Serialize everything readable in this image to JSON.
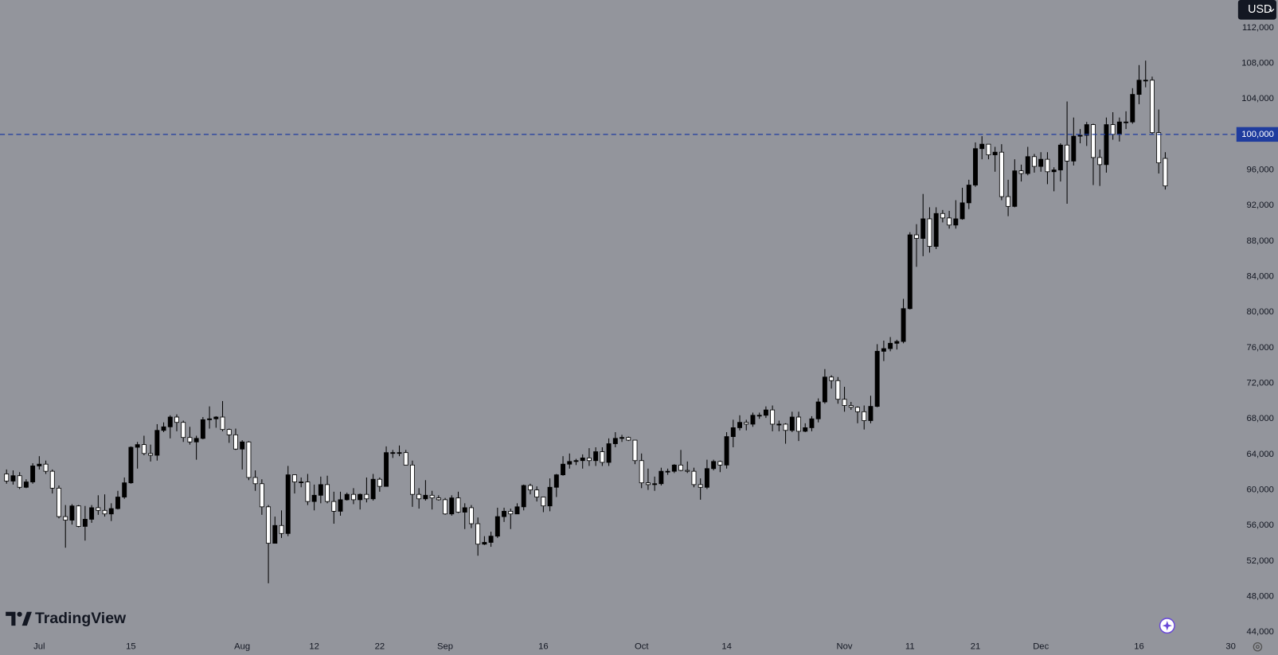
{
  "chart_data": {
    "type": "candlestick",
    "x": [
      "06-26",
      "06-27",
      "06-28",
      "06-29",
      "06-30",
      "07-01",
      "07-02",
      "07-03",
      "07-04",
      "07-05",
      "07-06",
      "07-07",
      "07-08",
      "07-09",
      "07-10",
      "07-11",
      "07-12",
      "07-13",
      "07-14",
      "07-15",
      "07-16",
      "07-17",
      "07-18",
      "07-19",
      "07-20",
      "07-21",
      "07-22",
      "07-23",
      "07-24",
      "07-25",
      "07-26",
      "07-27",
      "07-28",
      "07-29",
      "07-30",
      "07-31",
      "08-01",
      "08-02",
      "08-03",
      "08-04",
      "08-05",
      "08-06",
      "08-07",
      "08-08",
      "08-09",
      "08-10",
      "08-11",
      "08-12",
      "08-13",
      "08-14",
      "08-15",
      "08-16",
      "08-17",
      "08-18",
      "08-19",
      "08-20",
      "08-21",
      "08-22",
      "08-23",
      "08-24",
      "08-25",
      "08-26",
      "08-27",
      "08-28",
      "08-29",
      "08-30",
      "08-31",
      "09-01",
      "09-02",
      "09-03",
      "09-04",
      "09-05",
      "09-06",
      "09-07",
      "09-08",
      "09-09",
      "09-10",
      "09-11",
      "09-12",
      "09-13",
      "09-14",
      "09-15",
      "09-16",
      "09-17",
      "09-18",
      "09-19",
      "09-20",
      "09-21",
      "09-22",
      "09-23",
      "09-24",
      "09-25",
      "09-26",
      "09-27",
      "09-28",
      "09-29",
      "09-30",
      "10-01",
      "10-02",
      "10-03",
      "10-04",
      "10-05",
      "10-06",
      "10-07",
      "10-08",
      "10-09",
      "10-10",
      "10-11",
      "10-12",
      "10-13",
      "10-14",
      "10-15",
      "10-16",
      "10-17",
      "10-18",
      "10-19",
      "10-20",
      "10-21",
      "10-22",
      "10-23",
      "10-24",
      "10-25",
      "10-26",
      "10-27",
      "10-28",
      "10-29",
      "10-30",
      "10-31",
      "11-01",
      "11-02",
      "11-03",
      "11-04",
      "11-05",
      "11-06",
      "11-07",
      "11-08",
      "11-09",
      "11-10",
      "11-11",
      "11-12",
      "11-13",
      "11-14",
      "11-15",
      "11-16",
      "11-17",
      "11-18",
      "11-19",
      "11-20",
      "11-21",
      "11-22",
      "11-23",
      "11-24",
      "11-25",
      "11-26",
      "11-27",
      "11-28",
      "11-29",
      "11-30",
      "12-01",
      "12-02",
      "12-03",
      "12-04",
      "12-05",
      "12-06",
      "12-07",
      "12-08",
      "12-09",
      "12-10",
      "12-11",
      "12-12",
      "12-13",
      "12-14",
      "12-15",
      "12-16",
      "12-17",
      "12-18",
      "12-19",
      "12-20"
    ],
    "ohlc": [
      [
        61800,
        62300,
        60700,
        61000
      ],
      [
        61000,
        62200,
        60600,
        61600
      ],
      [
        61600,
        62000,
        60100,
        60300
      ],
      [
        60300,
        61200,
        60200,
        60900
      ],
      [
        60900,
        63000,
        60700,
        62700
      ],
      [
        62700,
        63800,
        62300,
        62900
      ],
      [
        62900,
        63300,
        61800,
        62100
      ],
      [
        62100,
        62300,
        59600,
        60200
      ],
      [
        60200,
        60500,
        56800,
        57000
      ],
      [
        57000,
        58300,
        53500,
        56600
      ],
      [
        56600,
        58400,
        56100,
        58200
      ],
      [
        58200,
        58300,
        55800,
        55900
      ],
      [
        55900,
        58200,
        54300,
        56700
      ],
      [
        56700,
        58300,
        56300,
        58000
      ],
      [
        58000,
        59400,
        57200,
        57700
      ],
      [
        57700,
        59500,
        57000,
        57300
      ],
      [
        57300,
        58500,
        56500,
        57900
      ],
      [
        57900,
        59900,
        57800,
        59200
      ],
      [
        59200,
        61400,
        59000,
        60800
      ],
      [
        60800,
        64900,
        60700,
        64800
      ],
      [
        64800,
        65400,
        62400,
        65100
      ],
      [
        65100,
        66100,
        63900,
        64100
      ],
      [
        64100,
        65100,
        63200,
        63900
      ],
      [
        63900,
        67400,
        63300,
        66700
      ],
      [
        66700,
        67600,
        66500,
        67100
      ],
      [
        67100,
        68400,
        65800,
        68200
      ],
      [
        68200,
        68500,
        66600,
        67600
      ],
      [
        67600,
        67800,
        65400,
        65900
      ],
      [
        65900,
        67100,
        65100,
        65400
      ],
      [
        65400,
        66100,
        63400,
        65800
      ],
      [
        65800,
        68200,
        65700,
        67900
      ],
      [
        67900,
        69400,
        66900,
        68000
      ],
      [
        68000,
        68300,
        67000,
        68200
      ],
      [
        68200,
        70000,
        66600,
        66800
      ],
      [
        66800,
        66900,
        65300,
        66200
      ],
      [
        66200,
        66900,
        64500,
        64600
      ],
      [
        64600,
        65600,
        62300,
        65400
      ],
      [
        65400,
        65500,
        61100,
        61400
      ],
      [
        61400,
        62200,
        59900,
        60700
      ],
      [
        60700,
        61200,
        57200,
        58100
      ],
      [
        58100,
        58300,
        49500,
        54000
      ],
      [
        54000,
        57000,
        54000,
        56000
      ],
      [
        56000,
        57700,
        54600,
        55100
      ],
      [
        55100,
        62700,
        54800,
        61700
      ],
      [
        61700,
        61700,
        59600,
        60900
      ],
      [
        60900,
        61400,
        60300,
        60900
      ],
      [
        60900,
        61800,
        58300,
        58700
      ],
      [
        58700,
        60600,
        57700,
        59400
      ],
      [
        59400,
        61500,
        58500,
        60600
      ],
      [
        60600,
        61600,
        58500,
        58700
      ],
      [
        58700,
        59800,
        56200,
        57600
      ],
      [
        57600,
        59800,
        57100,
        58900
      ],
      [
        58900,
        59700,
        58800,
        59500
      ],
      [
        59500,
        60200,
        58400,
        58900
      ],
      [
        58900,
        59600,
        57800,
        59500
      ],
      [
        59500,
        61400,
        58600,
        59000
      ],
      [
        59000,
        61800,
        58800,
        61200
      ],
      [
        61200,
        61400,
        59800,
        60400
      ],
      [
        60400,
        64900,
        60400,
        64200
      ],
      [
        64200,
        64500,
        63600,
        64200
      ],
      [
        64200,
        65000,
        63800,
        64200
      ],
      [
        64200,
        64500,
        62800,
        62800
      ],
      [
        62800,
        63300,
        58100,
        59500
      ],
      [
        59500,
        60200,
        57900,
        59000
      ],
      [
        59000,
        61100,
        58800,
        59400
      ],
      [
        59400,
        59900,
        57800,
        59100
      ],
      [
        59100,
        59400,
        58800,
        58900
      ],
      [
        58900,
        59100,
        57200,
        57300
      ],
      [
        57300,
        59400,
        57100,
        59100
      ],
      [
        59100,
        59800,
        57400,
        57500
      ],
      [
        57500,
        58500,
        55600,
        58000
      ],
      [
        58000,
        58300,
        55700,
        56200
      ],
      [
        56200,
        56900,
        52600,
        53900
      ],
      [
        53900,
        54800,
        53800,
        54100
      ],
      [
        54100,
        55300,
        53600,
        54800
      ],
      [
        54800,
        58000,
        54600,
        57000
      ],
      [
        57000,
        58000,
        56400,
        57600
      ],
      [
        57600,
        57900,
        55600,
        57300
      ],
      [
        57300,
        58500,
        57300,
        58100
      ],
      [
        58100,
        60600,
        57700,
        60500
      ],
      [
        60500,
        60700,
        59500,
        60000
      ],
      [
        60000,
        60400,
        58700,
        59200
      ],
      [
        59200,
        59200,
        57500,
        58200
      ],
      [
        58200,
        61300,
        57600,
        60300
      ],
      [
        60300,
        61800,
        59200,
        61700
      ],
      [
        61700,
        63800,
        61600,
        62900
      ],
      [
        62900,
        64100,
        62400,
        63200
      ],
      [
        63200,
        63500,
        62800,
        63300
      ],
      [
        63300,
        64000,
        62400,
        63600
      ],
      [
        63600,
        64700,
        62700,
        63300
      ],
      [
        63300,
        64800,
        62700,
        64300
      ],
      [
        64300,
        64800,
        62700,
        63100
      ],
      [
        63100,
        65800,
        62700,
        65200
      ],
      [
        65200,
        66500,
        64800,
        65800
      ],
      [
        65800,
        66200,
        65400,
        65900
      ],
      [
        65900,
        66000,
        65500,
        65600
      ],
      [
        65600,
        65600,
        62900,
        63300
      ],
      [
        63300,
        64100,
        60200,
        60800
      ],
      [
        60800,
        62400,
        60000,
        60600
      ],
      [
        60600,
        61500,
        59900,
        60700
      ],
      [
        60700,
        62500,
        60500,
        62100
      ],
      [
        62100,
        62400,
        61700,
        62100
      ],
      [
        62100,
        62900,
        61900,
        62800
      ],
      [
        62800,
        64500,
        62100,
        62200
      ],
      [
        62200,
        63200,
        61900,
        62100
      ],
      [
        62100,
        62500,
        60300,
        60600
      ],
      [
        60600,
        61300,
        58900,
        60300
      ],
      [
        60300,
        63400,
        60100,
        62400
      ],
      [
        62400,
        63400,
        62200,
        63200
      ],
      [
        63200,
        63300,
        62000,
        62800
      ],
      [
        62800,
        66500,
        62400,
        66000
      ],
      [
        66000,
        67900,
        64800,
        67000
      ],
      [
        67000,
        68400,
        66700,
        67600
      ],
      [
        67600,
        67900,
        66700,
        67400
      ],
      [
        67400,
        68700,
        67100,
        68400
      ],
      [
        68400,
        68700,
        68000,
        68400
      ],
      [
        68400,
        69400,
        68100,
        69000
      ],
      [
        69000,
        69500,
        66600,
        67400
      ],
      [
        67400,
        67800,
        66600,
        67400
      ],
      [
        67400,
        67500,
        65200,
        66700
      ],
      [
        66700,
        68800,
        66500,
        68200
      ],
      [
        68200,
        68800,
        65500,
        66600
      ],
      [
        66600,
        67500,
        66500,
        67000
      ],
      [
        67000,
        68300,
        66600,
        68000
      ],
      [
        68000,
        70300,
        67600,
        69900
      ],
      [
        69900,
        73600,
        69700,
        72700
      ],
      [
        72700,
        72900,
        71400,
        72300
      ],
      [
        72300,
        72700,
        69700,
        70200
      ],
      [
        70200,
        71600,
        68800,
        69500
      ],
      [
        69500,
        69900,
        69000,
        69300
      ],
      [
        69300,
        69400,
        67500,
        68800
      ],
      [
        68800,
        69500,
        66800,
        67800
      ],
      [
        67800,
        70600,
        67500,
        69400
      ],
      [
        69400,
        76400,
        69300,
        75600
      ],
      [
        75600,
        76800,
        74500,
        75900
      ],
      [
        75900,
        77200,
        75600,
        76500
      ],
      [
        76500,
        76900,
        75800,
        76700
      ],
      [
        76700,
        81500,
        76500,
        80400
      ],
      [
        80400,
        89000,
        80300,
        88700
      ],
      [
        88700,
        89900,
        85100,
        88300
      ],
      [
        88300,
        93300,
        86300,
        90500
      ],
      [
        90500,
        91800,
        86700,
        87400
      ],
      [
        87400,
        91800,
        87100,
        91100
      ],
      [
        91100,
        91500,
        90100,
        90600
      ],
      [
        90600,
        91400,
        89400,
        89800
      ],
      [
        89800,
        92600,
        89400,
        90500
      ],
      [
        90500,
        94000,
        90400,
        92300
      ],
      [
        92300,
        94900,
        91600,
        94300
      ],
      [
        94300,
        99100,
        94100,
        98400
      ],
      [
        98400,
        99800,
        97200,
        98900
      ],
      [
        98900,
        98900,
        97200,
        97700
      ],
      [
        97700,
        98600,
        95800,
        98000
      ],
      [
        98000,
        98900,
        92600,
        93000
      ],
      [
        93000,
        94900,
        90800,
        91900
      ],
      [
        91900,
        97200,
        91800,
        95900
      ],
      [
        95900,
        96600,
        94700,
        95600
      ],
      [
        95600,
        98600,
        95400,
        97500
      ],
      [
        97500,
        97800,
        95700,
        96400
      ],
      [
        96400,
        98000,
        95800,
        97200
      ],
      [
        97200,
        98000,
        94400,
        95800
      ],
      [
        95800,
        96300,
        93600,
        96000
      ],
      [
        96000,
        99000,
        94700,
        98800
      ],
      [
        98800,
        103700,
        92200,
        97000
      ],
      [
        97000,
        101900,
        96500,
        99800
      ],
      [
        99800,
        100600,
        99000,
        99900
      ],
      [
        99900,
        101400,
        98700,
        101100
      ],
      [
        101100,
        101200,
        94300,
        97400
      ],
      [
        97400,
        98300,
        94200,
        96600
      ],
      [
        96600,
        101900,
        95700,
        101100
      ],
      [
        101100,
        102500,
        99400,
        100000
      ],
      [
        100000,
        101900,
        99200,
        101400
      ],
      [
        101400,
        102600,
        100600,
        101400
      ],
      [
        101400,
        105200,
        101200,
        104500
      ],
      [
        104500,
        107800,
        103400,
        106100
      ],
      [
        106100,
        108300,
        105300,
        106100
      ],
      [
        106100,
        106500,
        100000,
        100200
      ],
      [
        100200,
        102800,
        95600,
        96800
      ],
      [
        97300,
        98000,
        93800,
        94200
      ]
    ],
    "up_color": "#000000",
    "down_color": "#ffffff",
    "wick_color": "#000000",
    "ylim": [
      41430,
      115120
    ],
    "yticks": [
      {
        "value": 44000,
        "label": "44,000"
      },
      {
        "value": 48000,
        "label": "48,000"
      },
      {
        "value": 52000,
        "label": "52,000"
      },
      {
        "value": 56000,
        "label": "56,000"
      },
      {
        "value": 60000,
        "label": "60,000"
      },
      {
        "value": 64000,
        "label": "64,000"
      },
      {
        "value": 68000,
        "label": "68,000"
      },
      {
        "value": 72000,
        "label": "72,000"
      },
      {
        "value": 76000,
        "label": "76,000"
      },
      {
        "value": 80000,
        "label": "80,000"
      },
      {
        "value": 84000,
        "label": "84,000"
      },
      {
        "value": 88000,
        "label": "88,000"
      },
      {
        "value": 92000,
        "label": "92,000"
      },
      {
        "value": 96000,
        "label": "96,000"
      },
      {
        "value": 104000,
        "label": "104,000"
      },
      {
        "value": 108000,
        "label": "108,000"
      },
      {
        "value": 112000,
        "label": "112,000"
      }
    ],
    "xlim": [
      "06-25",
      "12-30"
    ],
    "xticks": [
      {
        "value": "07-01",
        "label": "Jul"
      },
      {
        "value": "07-15",
        "label": "15"
      },
      {
        "value": "08-01",
        "label": "Aug"
      },
      {
        "value": "08-12",
        "label": "12"
      },
      {
        "value": "08-22",
        "label": "22"
      },
      {
        "value": "09-01",
        "label": "Sep"
      },
      {
        "value": "09-16",
        "label": "16"
      },
      {
        "value": "10-01",
        "label": "Oct"
      },
      {
        "value": "10-14",
        "label": "14"
      },
      {
        "value": "11-01",
        "label": "Nov"
      },
      {
        "value": "11-11",
        "label": "11"
      },
      {
        "value": "11-21",
        "label": "21"
      },
      {
        "value": "12-01",
        "label": "Dec"
      },
      {
        "value": "12-16",
        "label": "16"
      },
      {
        "value": "12-30",
        "label": "30"
      }
    ],
    "price_line": {
      "value": 100000,
      "label": "100,000",
      "color": "#1f3c9e"
    }
  },
  "toolbar": {
    "currency": "USD"
  },
  "watermark": "TradingView"
}
